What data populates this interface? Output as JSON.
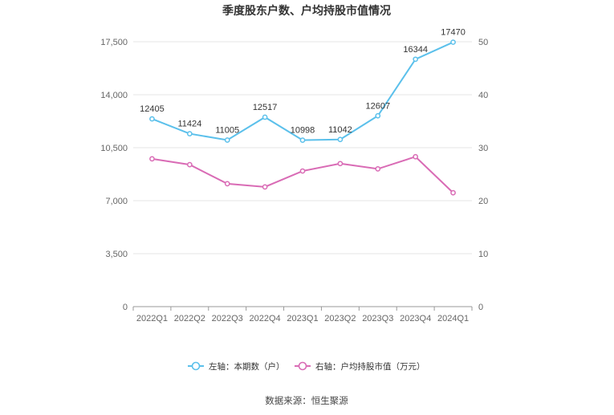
{
  "chart_data": {
    "type": "line",
    "title": "季度股东户数、户均持股市值情况",
    "categories": [
      "2022Q1",
      "2022Q2",
      "2022Q3",
      "2022Q4",
      "2023Q1",
      "2023Q2",
      "2023Q3",
      "2023Q4",
      "2024Q1"
    ],
    "y_left": {
      "ticks": [
        "0",
        "3,500",
        "7,000",
        "10,500",
        "14,000",
        "17,500"
      ],
      "range": [
        0,
        17500
      ]
    },
    "y_right": {
      "ticks": [
        "0",
        "10",
        "20",
        "30",
        "40",
        "50"
      ],
      "range": [
        0,
        50
      ]
    },
    "series": [
      {
        "name": "左轴：本期数（户）",
        "axis": "left",
        "color": "#5bc0eb",
        "values": [
          12405,
          11424,
          11005,
          12517,
          10998,
          11042,
          12607,
          16344,
          17470
        ],
        "labels": [
          "12405",
          "11424",
          "11005",
          "12517",
          "10998",
          "11042",
          "12607",
          "16344",
          "17470"
        ]
      },
      {
        "name": "右轴：户均持股市值（万元）",
        "axis": "right",
        "color": "#d96bb5",
        "values": [
          27.9,
          26.8,
          23.2,
          22.6,
          25.6,
          27.0,
          26.0,
          28.3,
          21.5
        ]
      }
    ],
    "grid": true,
    "legend": "bottom-center"
  },
  "source": "数据来源：恒生聚源"
}
